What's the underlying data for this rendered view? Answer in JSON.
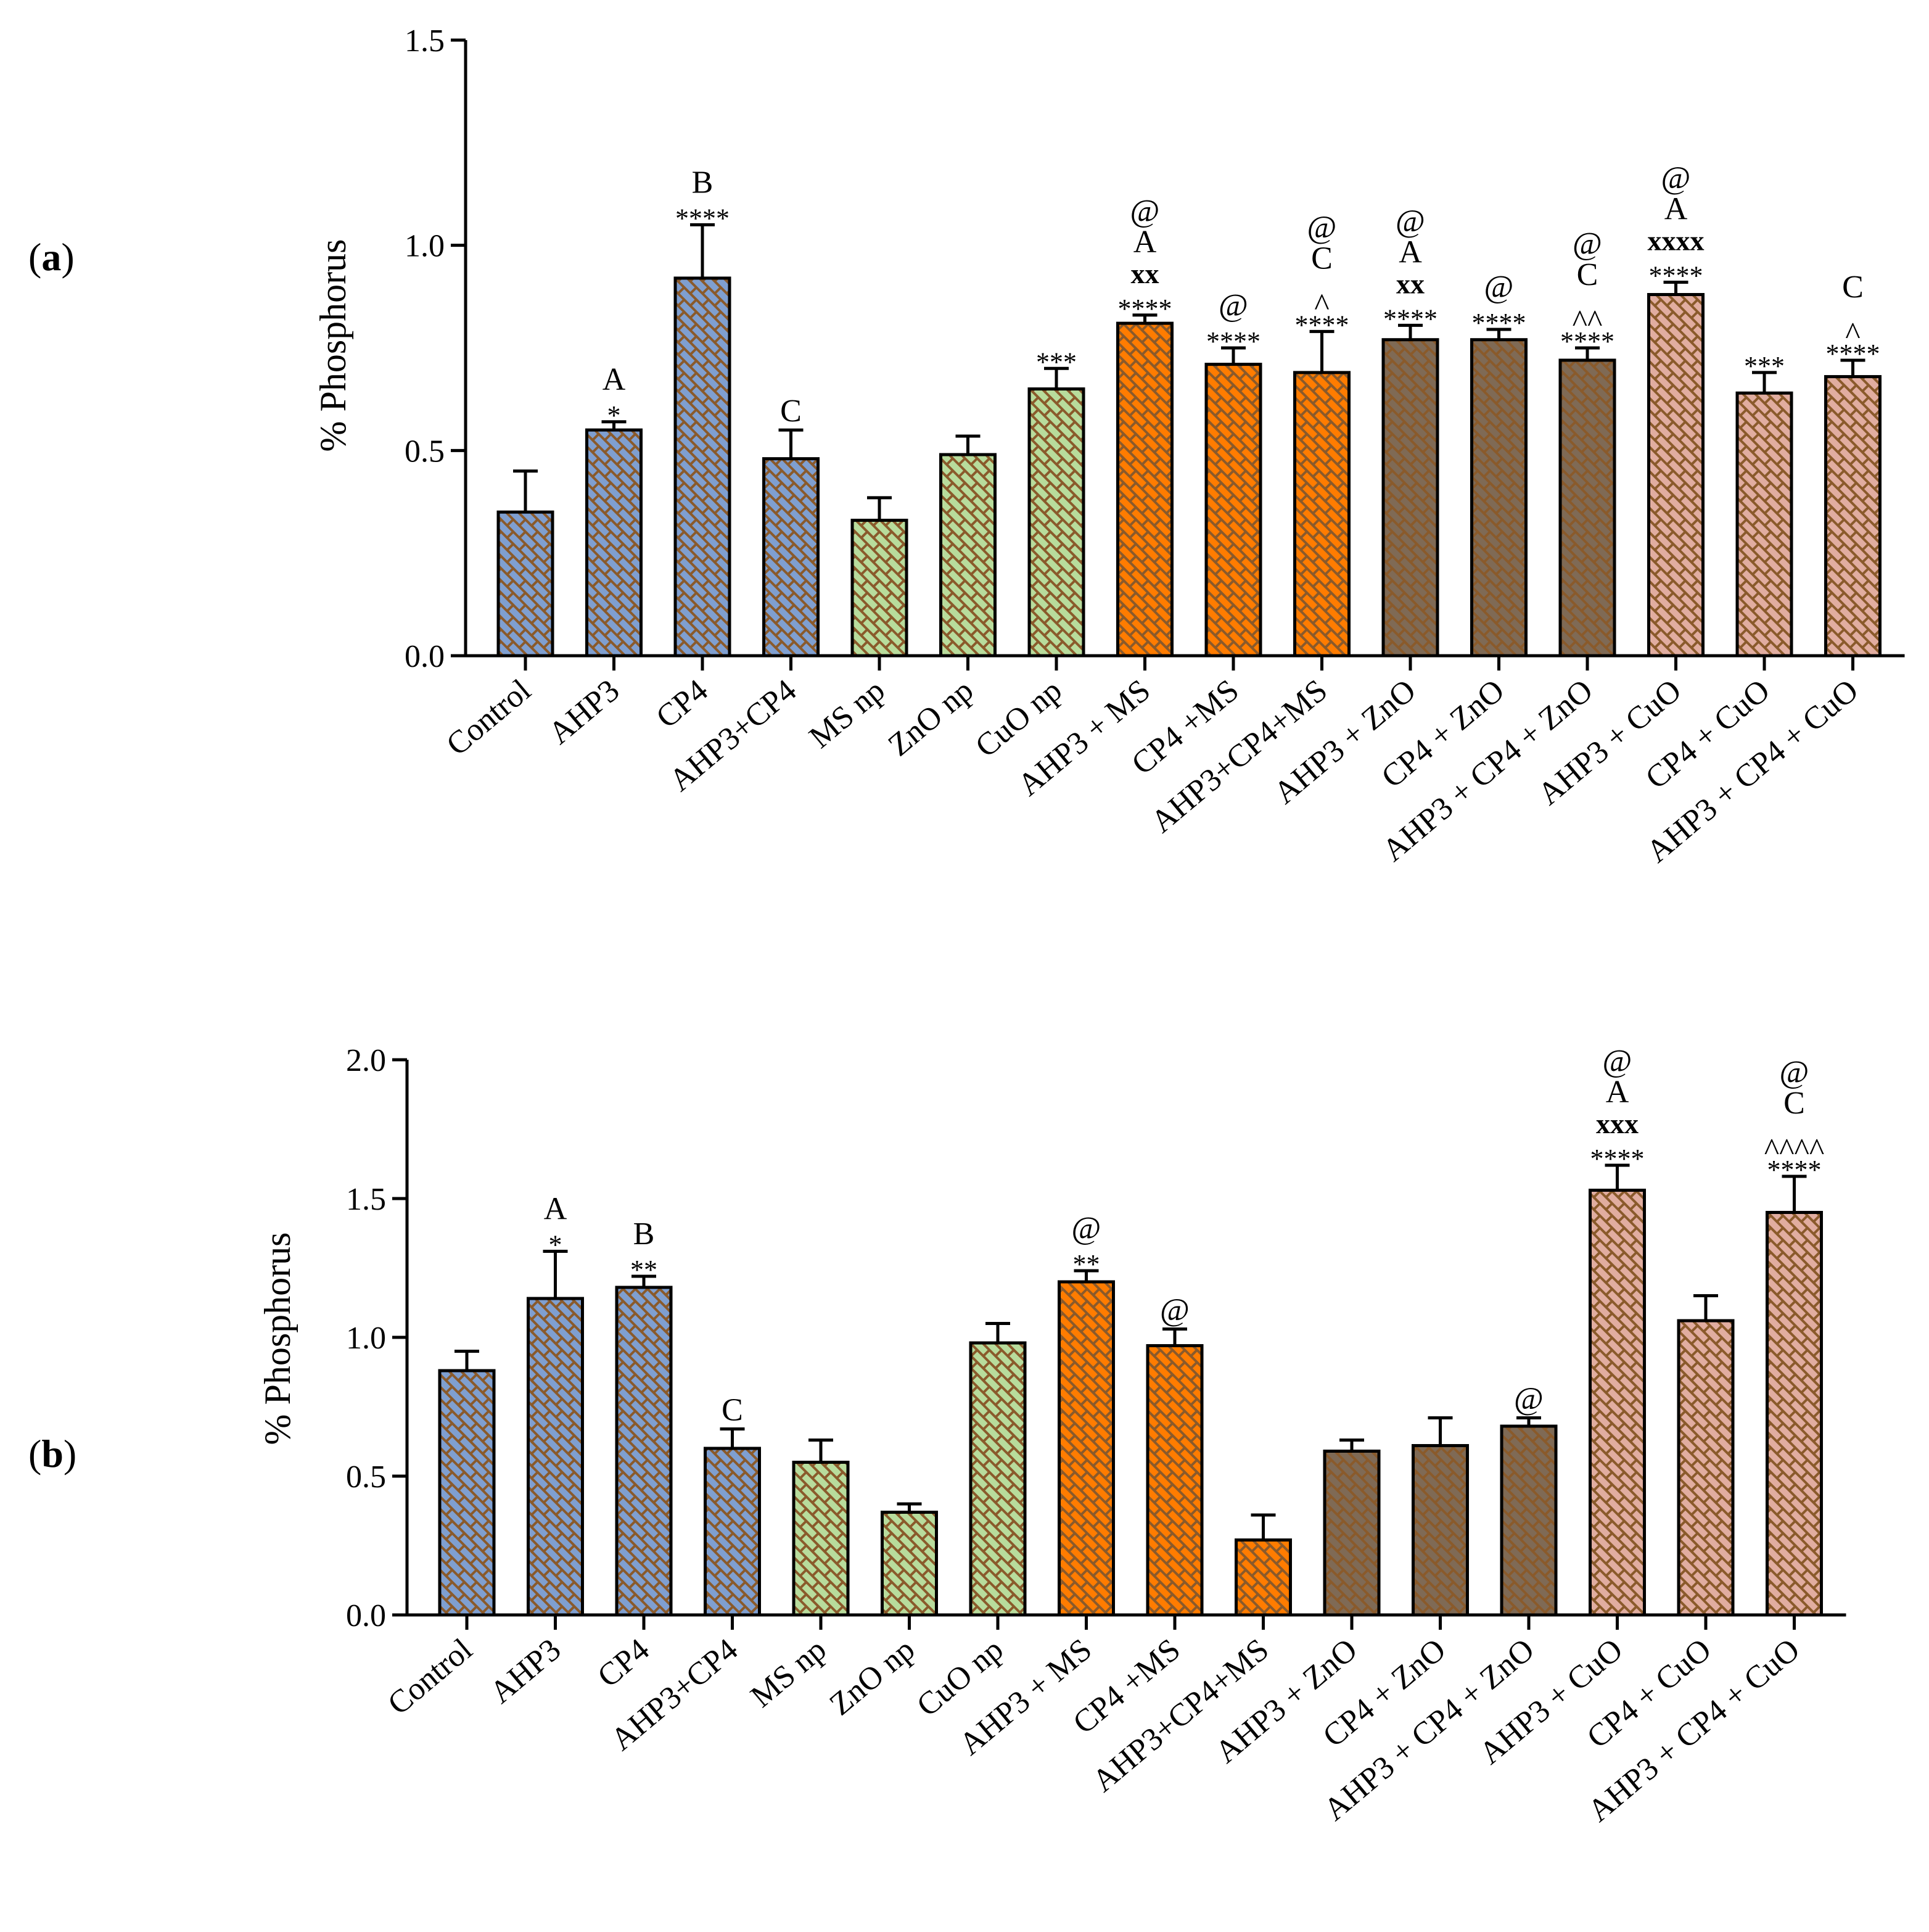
{
  "colors": {
    "blue": "#7f9fd0",
    "green": "#b8dc9c",
    "orange": "#ff7c00",
    "taupe": "#7f6a55",
    "pink": "#e1ada0",
    "hatch": "#8a5a2b",
    "ink": "#000000"
  },
  "chart_data": [
    {
      "type": "bar",
      "panel_label": "a",
      "ylabel": "% Phosphorus",
      "xlabel": "",
      "ylim": [
        0,
        1.5
      ],
      "yticks": [
        "0.0",
        "0.5",
        "1.0",
        "1.5"
      ],
      "ytick_values": [
        0,
        0.5,
        1.0,
        1.5
      ],
      "categories": [
        "Control",
        "AHP3",
        "CP4",
        "AHP3+CP4",
        "MS np",
        "ZnO np",
        "CuO np",
        "AHP3 + MS",
        "CP4 +MS",
        "AHP3+CP4+MS",
        "AHP3 + ZnO",
        "CP4 + ZnO",
        "AHP3 + CP4 + ZnO",
        "AHP3 + CuO",
        "CP4 + CuO",
        "AHP3 + CP4 + CuO"
      ],
      "colors": [
        "blue",
        "blue",
        "blue",
        "blue",
        "green",
        "green",
        "green",
        "orange",
        "orange",
        "orange",
        "taupe",
        "taupe",
        "taupe",
        "pink",
        "pink",
        "pink"
      ],
      "values": [
        0.35,
        0.55,
        0.92,
        0.48,
        0.33,
        0.49,
        0.65,
        0.81,
        0.71,
        0.69,
        0.77,
        0.77,
        0.72,
        0.88,
        0.64,
        0.68
      ],
      "errors": [
        0.1,
        0.02,
        0.13,
        0.07,
        0.055,
        0.045,
        0.05,
        0.02,
        0.04,
        0.1,
        0.035,
        0.025,
        0.03,
        0.03,
        0.05,
        0.04
      ],
      "annotations": [
        [],
        [
          "*",
          "A"
        ],
        [
          "****",
          "B"
        ],
        [
          "C"
        ],
        [],
        [],
        [
          "***"
        ],
        [
          "****",
          "xx",
          "A",
          "@"
        ],
        [
          "****",
          "@"
        ],
        [
          "****",
          "^",
          "C",
          "@"
        ],
        [
          "****",
          "xx",
          "A",
          "@"
        ],
        [
          "****",
          "@"
        ],
        [
          "****",
          "^^",
          "C",
          "@"
        ],
        [
          "****",
          "xxxx",
          "A",
          "@"
        ],
        [
          "***"
        ],
        [
          "****",
          "^",
          "C"
        ]
      ]
    },
    {
      "type": "bar",
      "panel_label": "b",
      "ylabel": "% Phosphorus",
      "xlabel": "",
      "ylim": [
        0,
        2.0
      ],
      "yticks": [
        "0.0",
        "0.5",
        "1.0",
        "1.5",
        "2.0"
      ],
      "ytick_values": [
        0,
        0.5,
        1.0,
        1.5,
        2.0
      ],
      "categories": [
        "Control",
        "AHP3",
        "CP4",
        "AHP3+CP4",
        "MS np",
        "ZnO np",
        "CuO np",
        "AHP3 + MS",
        "CP4 +MS",
        "AHP3+CP4+MS",
        "AHP3 + ZnO",
        "CP4 + ZnO",
        "AHP3 + CP4 + ZnO",
        "AHP3 + CuO",
        "CP4 + CuO",
        "AHP3 + CP4 + CuO"
      ],
      "colors": [
        "blue",
        "blue",
        "blue",
        "blue",
        "green",
        "green",
        "green",
        "orange",
        "orange",
        "orange",
        "taupe",
        "taupe",
        "taupe",
        "pink",
        "pink",
        "pink"
      ],
      "values": [
        0.88,
        1.14,
        1.18,
        0.6,
        0.55,
        0.37,
        0.98,
        1.2,
        0.97,
        0.27,
        0.59,
        0.61,
        0.68,
        1.53,
        1.06,
        1.45
      ],
      "errors": [
        0.07,
        0.17,
        0.04,
        0.07,
        0.08,
        0.03,
        0.07,
        0.04,
        0.06,
        0.09,
        0.04,
        0.1,
        0.03,
        0.09,
        0.09,
        0.13
      ],
      "annotations": [
        [],
        [
          "*",
          "A"
        ],
        [
          "**",
          "B"
        ],
        [
          "C"
        ],
        [],
        [],
        [],
        [
          "**",
          "@"
        ],
        [
          "@"
        ],
        [],
        [],
        [],
        [
          "@"
        ],
        [
          "****",
          "xxx",
          "A",
          "@"
        ],
        [],
        [
          "****",
          "^^^^",
          "C",
          "@"
        ]
      ]
    }
  ]
}
